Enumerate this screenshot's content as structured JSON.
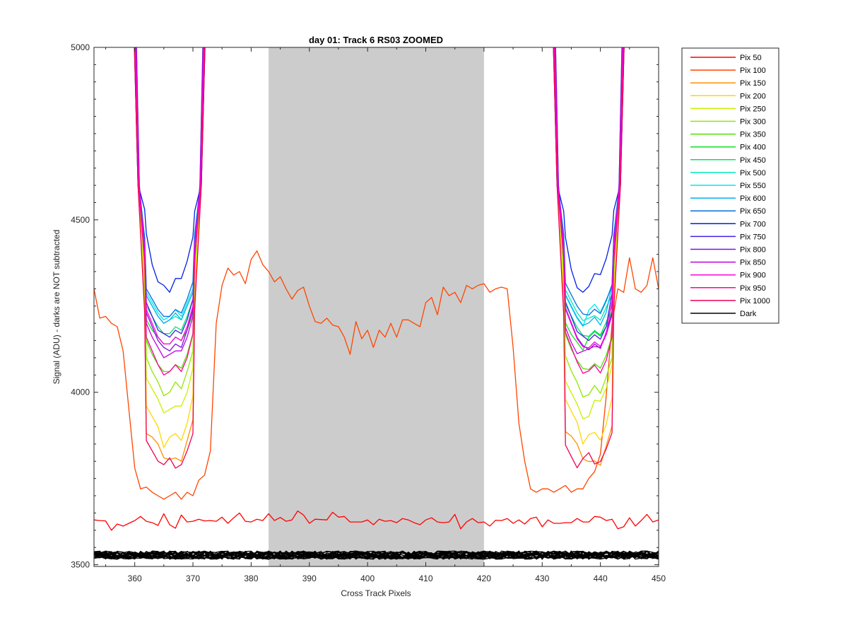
{
  "chart_data": {
    "type": "line",
    "title": "day 01: Track 6  RS03 ZOOMED",
    "xlabel": "Cross Track Pixels",
    "ylabel": "Signal (ADU) - darks are NOT subtracted",
    "xlim": [
      353,
      450
    ],
    "ylim": [
      3495,
      5000
    ],
    "xticks": [
      "360",
      "370",
      "380",
      "390",
      "400",
      "410",
      "420",
      "430",
      "440",
      "450"
    ],
    "yticks": [
      "3500",
      "4000",
      "4500",
      "5000"
    ],
    "shaded_region": {
      "x": [
        383,
        420
      ],
      "color": "#cccccc"
    },
    "grid": false,
    "legend_position": "outside right",
    "series": [
      {
        "name": "Pix 50",
        "color": "#ff0000",
        "kind": "flat",
        "values": [
          3630,
          3628,
          3627,
          3600,
          3618,
          3612,
          3620,
          3628,
          3640,
          3626,
          3622,
          3614,
          3648,
          3616,
          3606,
          3644,
          3624,
          3626,
          3632,
          3627,
          3628,
          3626,
          3638,
          3620,
          3636,
          3650,
          3626,
          3624,
          3632,
          3628,
          3648,
          3628,
          3637,
          3626,
          3630,
          3656,
          3644,
          3620,
          3632,
          3631,
          3630,
          3652,
          3638,
          3640,
          3624,
          3624,
          3624,
          3630,
          3616,
          3632,
          3626,
          3628,
          3622,
          3634,
          3630,
          3622,
          3616,
          3630,
          3636,
          3624,
          3622,
          3624,
          3646,
          3604,
          3624,
          3634,
          3622,
          3624,
          3612,
          3629,
          3628,
          3634,
          3620,
          3630,
          3618,
          3634,
          3638,
          3610,
          3630,
          3620,
          3620,
          3622,
          3622,
          3634,
          3624,
          3624,
          3640,
          3638,
          3628,
          3632,
          3604,
          3610,
          3636,
          3612,
          3628,
          3646,
          3624,
          3630
        ]
      },
      {
        "name": "Pix 100",
        "color": "#ff4500",
        "kind": "band",
        "gap_min": 3700,
        "values": [
          4300,
          4215,
          4220,
          4200,
          4190,
          4120,
          3950,
          3780,
          3720,
          3725,
          3710,
          3700,
          3690,
          3700,
          3710,
          3690,
          3710,
          3700,
          3745,
          3760,
          3830,
          4200,
          4310,
          4360,
          4340,
          4350,
          4315,
          4385,
          4410,
          4370,
          4350,
          4320,
          4335,
          4300,
          4270,
          4295,
          4305,
          4250,
          4205,
          4200,
          4215,
          4195,
          4190,
          4160,
          4110,
          4205,
          4155,
          4180,
          4130,
          4180,
          4160,
          4200,
          4160,
          4210,
          4210,
          4200,
          4190,
          4260,
          4275,
          4225,
          4305,
          4280,
          4290,
          4260,
          4310,
          4300,
          4310,
          4315,
          4290,
          4300,
          4305,
          4300,
          4130,
          3910,
          3800,
          3720,
          3710,
          3720,
          3720,
          3710,
          3720,
          3730,
          3710,
          3720,
          3720,
          3750,
          3770,
          3820,
          3990,
          4200,
          4300,
          4290,
          4390,
          4300,
          4290,
          4310,
          4390,
          4300
        ]
      },
      {
        "name": "Pix 150",
        "color": "#ff9000",
        "kind": "band",
        "gap_min": 3800,
        "values": [
          3880,
          3870,
          3850,
          3810,
          3805,
          3810,
          3800,
          3860,
          3920
        ]
      },
      {
        "name": "Pix 200",
        "color": "#ffd700",
        "kind": "band",
        "gap_min": 3840,
        "values": [
          3960,
          3930,
          3900,
          3840,
          3870,
          3880,
          3860,
          3910,
          3990
        ]
      },
      {
        "name": "Pix 250",
        "color": "#c8f000",
        "kind": "band",
        "gap_min": 3930,
        "values": [
          4040,
          4010,
          3980,
          3940,
          3950,
          3960,
          3960,
          4000,
          4070
        ]
      },
      {
        "name": "Pix 300",
        "color": "#90e800",
        "kind": "band",
        "gap_min": 3990,
        "values": [
          4100,
          4060,
          4030,
          3990,
          4000,
          4030,
          4010,
          4060,
          4120
        ]
      },
      {
        "name": "Pix 350",
        "color": "#50e000",
        "kind": "band",
        "gap_min": 4050,
        "values": [
          4150,
          4110,
          4080,
          4060,
          4060,
          4080,
          4070,
          4110,
          4170
        ]
      },
      {
        "name": "Pix 400",
        "color": "#10e020",
        "kind": "band",
        "gap_min": 4120,
        "values": [
          4210,
          4180,
          4160,
          4140,
          4140,
          4160,
          4150,
          4180,
          4230
        ]
      },
      {
        "name": "Pix 450",
        "color": "#00e070",
        "kind": "band",
        "gap_min": 4160,
        "values": [
          4250,
          4220,
          4190,
          4170,
          4170,
          4190,
          4180,
          4220,
          4270
        ]
      },
      {
        "name": "Pix 500",
        "color": "#00e8b8",
        "kind": "band",
        "gap_min": 4190,
        "values": [
          4280,
          4250,
          4220,
          4200,
          4210,
          4220,
          4210,
          4250,
          4290
        ]
      },
      {
        "name": "Pix 550",
        "color": "#00e8e8",
        "kind": "band",
        "gap_min": 4200,
        "values": [
          4290,
          4260,
          4230,
          4210,
          4220,
          4240,
          4220,
          4260,
          4300
        ]
      },
      {
        "name": "Pix 600",
        "color": "#00b0f0",
        "kind": "band",
        "gap_min": 4200,
        "values": [
          4280,
          4250,
          4220,
          4200,
          4210,
          4230,
          4210,
          4250,
          4290
        ]
      },
      {
        "name": "Pix 650",
        "color": "#0070e0",
        "kind": "band",
        "gap_min": 4200,
        "values": [
          4300,
          4270,
          4240,
          4220,
          4220,
          4240,
          4230,
          4270,
          4320
        ]
      },
      {
        "name": "Pix 700",
        "color": "#0020e0",
        "kind": "band",
        "gap_min": 4280,
        "values": [
          4460,
          4370,
          4320,
          4310,
          4290,
          4330,
          4330,
          4380,
          4450
        ]
      },
      {
        "name": "Pix 750",
        "color": "#4020e0",
        "kind": "band",
        "gap_min": 4150,
        "values": [
          4260,
          4220,
          4180,
          4170,
          4160,
          4180,
          4170,
          4210,
          4270
        ]
      },
      {
        "name": "Pix 800",
        "color": "#8010e0",
        "kind": "band",
        "gap_min": 4110,
        "values": [
          4230,
          4190,
          4150,
          4130,
          4120,
          4140,
          4130,
          4180,
          4240
        ]
      },
      {
        "name": "Pix 850",
        "color": "#c000e0",
        "kind": "band",
        "gap_min": 4100,
        "values": [
          4200,
          4160,
          4130,
          4100,
          4110,
          4120,
          4120,
          4160,
          4220
        ]
      },
      {
        "name": "Pix 900",
        "color": "#ff00e0",
        "kind": "band",
        "gap_min": 4120,
        "values": [
          4240,
          4200,
          4160,
          4140,
          4140,
          4160,
          4150,
          4190,
          4250
        ]
      },
      {
        "name": "Pix 950",
        "color": "#ff0090",
        "kind": "band",
        "gap_min": 4030,
        "values": [
          4160,
          4120,
          4080,
          4050,
          4060,
          4080,
          4060,
          4100,
          4170
        ]
      },
      {
        "name": "Pix 1000",
        "color": "#f00050",
        "kind": "band",
        "gap_min": 3780,
        "values": [
          3860,
          3830,
          3800,
          3790,
          3810,
          3780,
          3790,
          3830,
          3880
        ]
      },
      {
        "name": "Dark",
        "color": "#000000",
        "kind": "dark",
        "center": 3528,
        "spread": 12,
        "count": 20
      }
    ]
  }
}
